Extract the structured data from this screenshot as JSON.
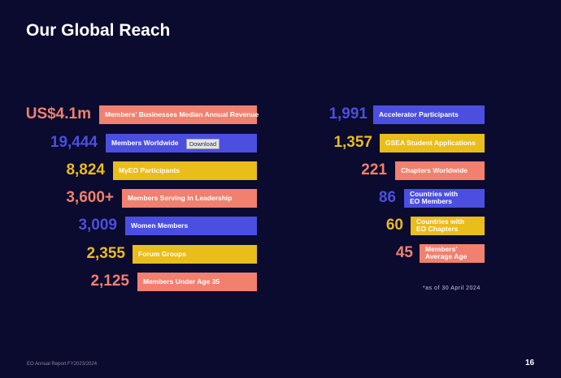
{
  "title": "Our Global Reach",
  "left_stats": [
    {
      "value": "US$4.1m",
      "label": "Members' Businesses Median Annual Revenue",
      "color": "salmon"
    },
    {
      "value": "19,444",
      "label": "Members Worldwide",
      "color": "blue"
    },
    {
      "value": "8,824",
      "label": "MyEO Participants",
      "color": "yellow"
    },
    {
      "value": "3,600+",
      "label": "Members Serving in Leadership",
      "color": "salmon"
    },
    {
      "value": "3,009",
      "label": "Women Members",
      "color": "blue"
    },
    {
      "value": "2,355",
      "label": "Forum Groups",
      "color": "yellow"
    },
    {
      "value": "2,125",
      "label": "Members Under Age 35",
      "color": "salmon"
    }
  ],
  "right_stats": [
    {
      "value": "1,991",
      "label": "Accelerator Participants",
      "color": "blue"
    },
    {
      "value": "1,357",
      "label": "GSEA Student Applications",
      "color": "yellow"
    },
    {
      "value": "221",
      "label": "Chapters Worldwide",
      "color": "salmon"
    },
    {
      "value": "86",
      "label_line1": "Countries with",
      "label_line2": "EO Members",
      "color": "blue"
    },
    {
      "value": "60",
      "label_line1": "Countries with",
      "label_line2": "EO Chapters",
      "color": "yellow"
    },
    {
      "value": "45",
      "label_line1": "Members'",
      "label_line2": "Average Age",
      "color": "salmon"
    }
  ],
  "download_label": "Download",
  "as_of": "*as of 30 April 2024",
  "footer_left": "EO Annual Report FY2023/2024",
  "page_number": "16",
  "colors": {
    "background": "#0b0a2f",
    "salmon": "#f1806f",
    "blue": "#4b4fe0",
    "yellow": "#e9bd1a"
  }
}
